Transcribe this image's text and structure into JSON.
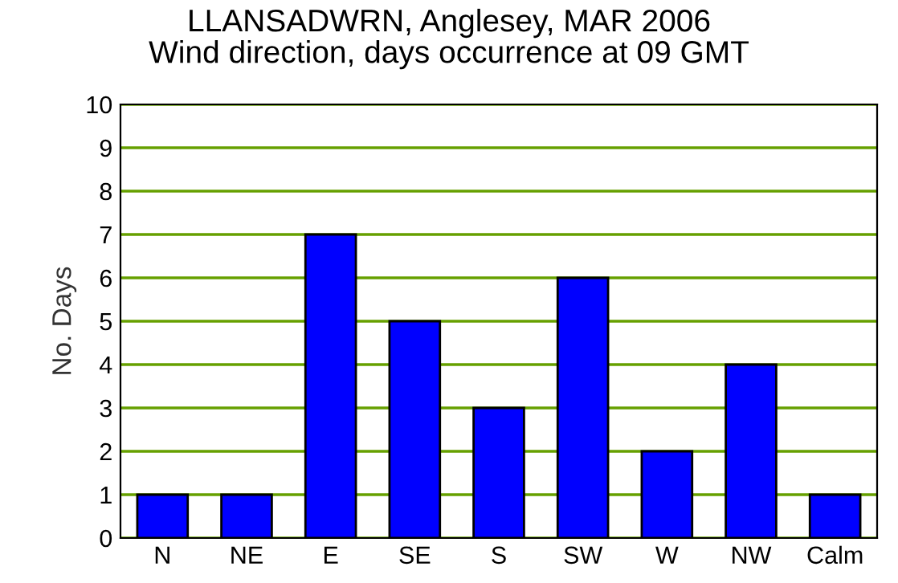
{
  "chart_data": {
    "type": "bar",
    "title": "LLANSADWRN, Anglesey, MAR 2006\nWind direction, days occurrence at 09 GMT",
    "ylabel": "No. Days",
    "categories": [
      "N",
      "NE",
      "E",
      "SE",
      "S",
      "SW",
      "W",
      "NW",
      "Calm"
    ],
    "values": [
      1,
      1,
      7,
      5,
      3,
      6,
      2,
      4,
      1
    ],
    "color": "#0000ff",
    "ylim": [
      0,
      10
    ],
    "yticks": [
      0,
      1,
      2,
      3,
      4,
      5,
      6,
      7,
      8,
      9,
      10
    ],
    "grid": "y"
  }
}
